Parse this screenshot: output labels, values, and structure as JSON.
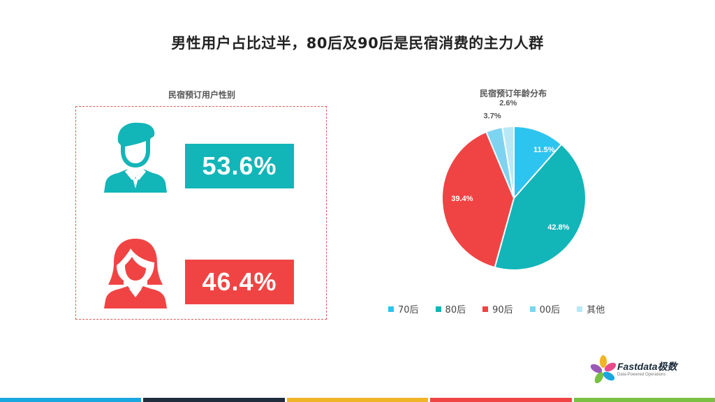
{
  "title": "男性用户占比过半，80后及90后是民宿消费的主力人群",
  "gender_section": {
    "title": "民宿预订用户性别",
    "male_pct": "53.6%",
    "female_pct": "46.4%",
    "male_color": "#12b5b8",
    "female_color": "#f04444",
    "male_icon": "male-user-icon",
    "female_icon": "female-user-icon"
  },
  "chart_data": {
    "type": "pie",
    "title": "民宿预订年龄分布",
    "categories": [
      "70后",
      "80后",
      "90后",
      "00后",
      "其他"
    ],
    "values": [
      11.5,
      42.8,
      39.4,
      3.7,
      2.6
    ],
    "labels": [
      "11.5%",
      "42.8%",
      "39.4%",
      "3.7%",
      "2.6%"
    ],
    "colors": [
      "#2ec4f0",
      "#12b5b8",
      "#f04444",
      "#7ed3f0",
      "#b8e8f5"
    ],
    "legend_position": "bottom"
  },
  "logo": {
    "brand": "Fastdata极数",
    "tagline": "Data-Powered Operations"
  },
  "bottom_bar_colors": [
    "#1aa7e0",
    "#1f2d3d",
    "#f0b429",
    "#f04444",
    "#7ac143"
  ]
}
